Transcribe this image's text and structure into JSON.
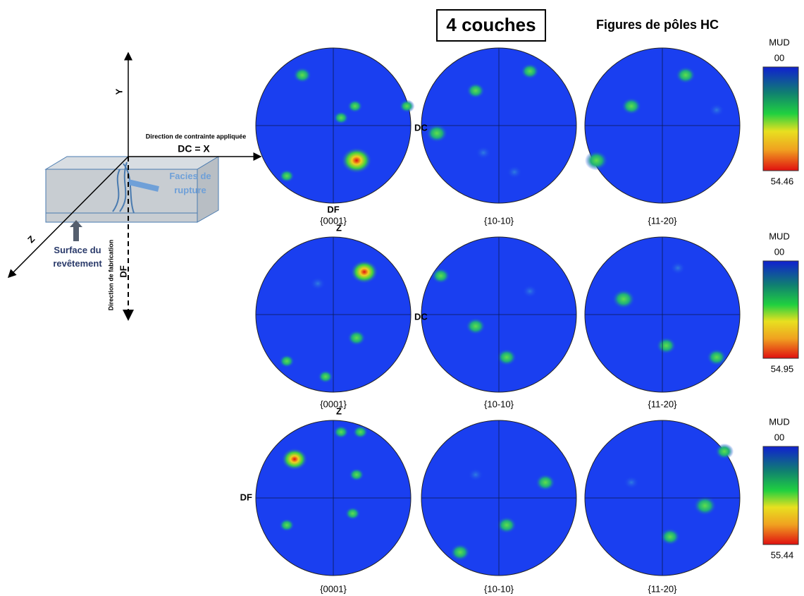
{
  "title": "4 couches",
  "subtitle": "Figures de pôles HC",
  "schematic": {
    "y_axis": "Y",
    "x_axis": "DC = X",
    "x_axis_caption": "Direction de contrainte appliquée",
    "z_axis": "Z",
    "df_axis": "DF",
    "df_caption": "Direction de fabrication",
    "fracture": "Facies de rupture",
    "surface": "Surface du revêtement"
  },
  "rows": [
    {
      "labels": {
        "right": "DC",
        "bottom": "DF"
      },
      "figures": [
        "{0001}",
        "{10-10}",
        "{11-20}"
      ],
      "scale": {
        "title": "MUD",
        "top": "00",
        "bottom": 54.46
      }
    },
    {
      "labels": {
        "top": "Z",
        "right": "DC"
      },
      "figures": [
        "{0001}",
        "{10-10}",
        "{11-20}"
      ],
      "scale": {
        "title": "MUD",
        "top": "00",
        "bottom": 54.95
      }
    },
    {
      "labels": {
        "top": "Z",
        "left": "DF"
      },
      "figures": [
        "{0001}",
        "{10-10}",
        "{11-20}"
      ],
      "scale": {
        "title": "MUD",
        "top": "00",
        "bottom": 55.44
      }
    }
  ]
}
